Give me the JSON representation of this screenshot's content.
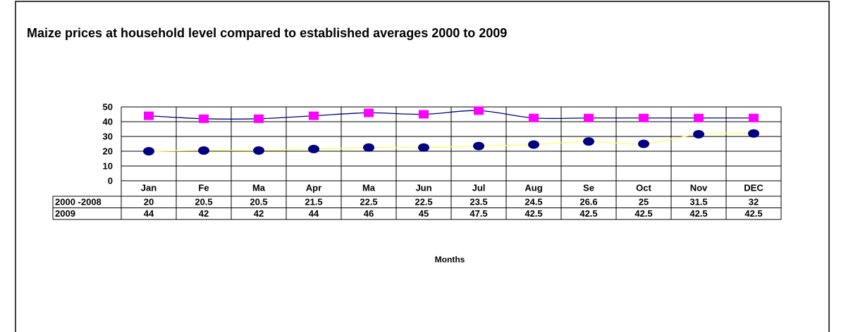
{
  "chart_data": {
    "type": "line",
    "title": "Maize prices at household level compared to established averages 2000 to 2009",
    "x_label": "Months",
    "categories": [
      "Jan",
      "Fe",
      "Ma",
      "Apr",
      "Ma",
      "Jun",
      "Jul",
      "Aug",
      "Se",
      "Oct",
      "Nov",
      "DEC"
    ],
    "series": [
      {
        "name": "2000 -2008",
        "color": "#000080",
        "line_color": "#ffff66",
        "marker": "ellipse",
        "values": [
          20,
          20.5,
          20.5,
          21.5,
          22.5,
          22.5,
          23.5,
          24.5,
          26.6,
          25,
          31.5,
          32
        ]
      },
      {
        "name": "2009",
        "color": "#ff00ff",
        "line_color": "#000080",
        "marker": "square",
        "values": [
          44,
          42,
          42,
          44,
          46,
          45,
          47.5,
          42.5,
          42.5,
          42.5,
          42.5,
          42.5
        ]
      }
    ],
    "ylim": [
      0,
      50
    ],
    "yticks": [
      0,
      10,
      20,
      30,
      40,
      50
    ],
    "grid": true
  }
}
